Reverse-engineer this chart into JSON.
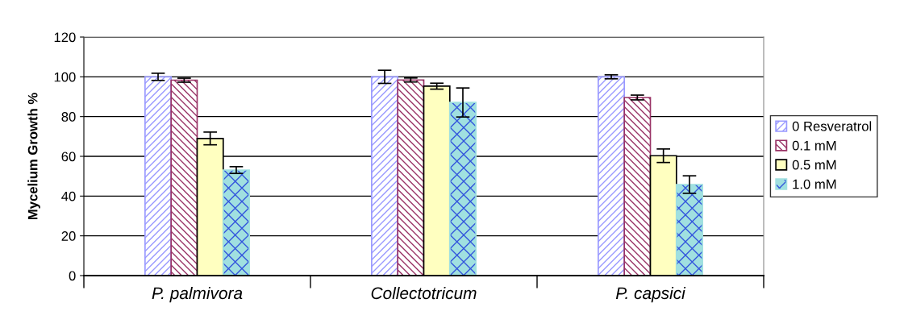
{
  "chart_data": {
    "type": "bar",
    "ylabel": "Mycelium Growth %",
    "categories": [
      "P. palmivora",
      "Collectotricum",
      "P. capsici"
    ],
    "series": [
      {
        "name": "0 Resveratrol",
        "color": "#9999ff",
        "values": [
          100,
          100,
          100
        ],
        "errors": [
          1.8,
          3.3,
          1
        ]
      },
      {
        "name": "0.1 mM",
        "color": "#993366",
        "values": [
          98.3,
          98.4,
          89.6
        ],
        "errors": [
          1,
          1,
          1.2
        ]
      },
      {
        "name": "0.5 mM",
        "color": "#ffffc0",
        "values": [
          69,
          95.3,
          60.3
        ],
        "errors": [
          3.2,
          1.5,
          3.4
        ]
      },
      {
        "name": "1.0 mM",
        "color": "#a0e0e0",
        "values": [
          53.1,
          87.1,
          45.8
        ],
        "errors": [
          1.7,
          7.3,
          4.4
        ]
      }
    ],
    "ylim": [
      0,
      120
    ],
    "yticks": [
      0,
      20,
      40,
      60,
      80,
      100,
      120
    ],
    "grid": "y",
    "legend": "right"
  }
}
